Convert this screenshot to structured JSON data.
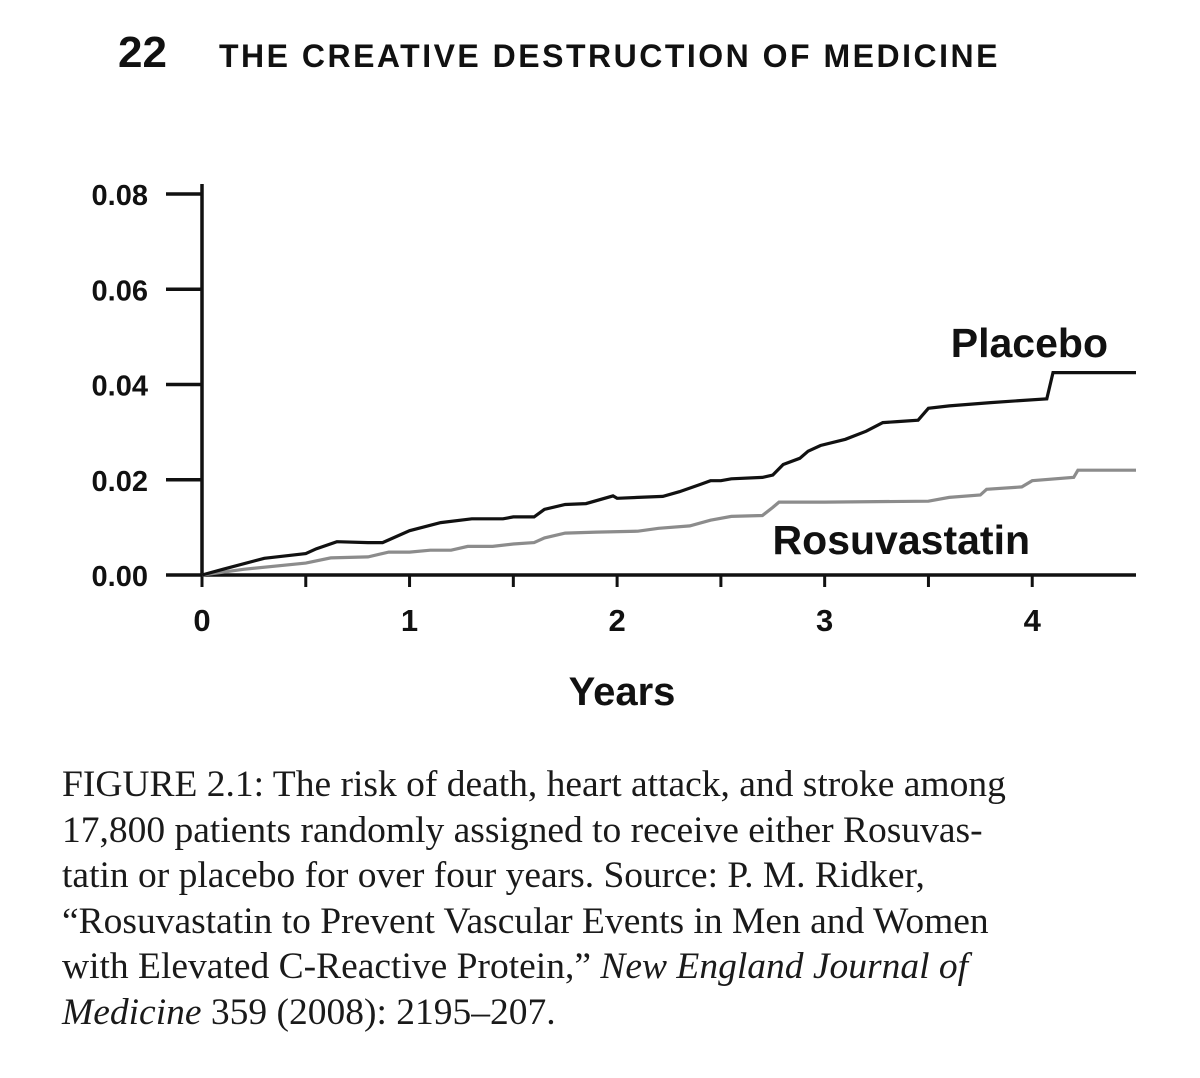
{
  "header": {
    "page_number": "22",
    "book_title": "THE CREATIVE DESTRUCTION OF MEDICINE"
  },
  "chart_data": {
    "type": "line",
    "title": "",
    "xlabel": "Years",
    "ylabel": "",
    "xlim": [
      0,
      4.5
    ],
    "ylim": [
      0,
      0.08
    ],
    "x_ticks": [
      0,
      1,
      2,
      3,
      4
    ],
    "x_tick_labels": [
      "0",
      "1",
      "2",
      "3",
      "4"
    ],
    "y_ticks": [
      0,
      0.02,
      0.04,
      0.06,
      0.08
    ],
    "y_tick_labels": [
      "0.00",
      "0.02",
      "0.04",
      "0.06",
      "0.08"
    ],
    "series": [
      {
        "name": "Placebo",
        "color": "#111111",
        "label_position": "right, above line",
        "points": [
          [
            0,
            0
          ],
          [
            0.1,
            0.0012
          ],
          [
            0.3,
            0.0035
          ],
          [
            0.5,
            0.0045
          ],
          [
            0.55,
            0.0055
          ],
          [
            0.65,
            0.007
          ],
          [
            0.8,
            0.0068
          ],
          [
            0.87,
            0.0068
          ],
          [
            1.0,
            0.0093
          ],
          [
            1.15,
            0.011
          ],
          [
            1.3,
            0.0118
          ],
          [
            1.45,
            0.0118
          ],
          [
            1.5,
            0.0122
          ],
          [
            1.6,
            0.0122
          ],
          [
            1.65,
            0.0138
          ],
          [
            1.75,
            0.0148
          ],
          [
            1.85,
            0.015
          ],
          [
            1.98,
            0.0166
          ],
          [
            2.0,
            0.0161
          ],
          [
            2.1,
            0.0163
          ],
          [
            2.22,
            0.0165
          ],
          [
            2.3,
            0.0175
          ],
          [
            2.4,
            0.019
          ],
          [
            2.45,
            0.0198
          ],
          [
            2.5,
            0.0198
          ],
          [
            2.55,
            0.0202
          ],
          [
            2.7,
            0.0205
          ],
          [
            2.75,
            0.021
          ],
          [
            2.8,
            0.0232
          ],
          [
            2.88,
            0.0245
          ],
          [
            2.92,
            0.026
          ],
          [
            2.98,
            0.0272
          ],
          [
            3.1,
            0.0285
          ],
          [
            3.2,
            0.0302
          ],
          [
            3.28,
            0.032
          ],
          [
            3.35,
            0.0322
          ],
          [
            3.45,
            0.0325
          ],
          [
            3.5,
            0.035
          ],
          [
            3.6,
            0.0355
          ],
          [
            3.8,
            0.0362
          ],
          [
            4.07,
            0.037
          ],
          [
            4.1,
            0.0425
          ],
          [
            4.5,
            0.0425
          ]
        ]
      },
      {
        "name": "Rosuvastatin",
        "color": "#8c8c8c",
        "label_position": "right, below line",
        "points": [
          [
            0,
            0
          ],
          [
            0.2,
            0.0012
          ],
          [
            0.5,
            0.0025
          ],
          [
            0.62,
            0.0036
          ],
          [
            0.8,
            0.0038
          ],
          [
            0.9,
            0.0048
          ],
          [
            1.0,
            0.0048
          ],
          [
            1.1,
            0.0052
          ],
          [
            1.2,
            0.0052
          ],
          [
            1.28,
            0.006
          ],
          [
            1.4,
            0.006
          ],
          [
            1.5,
            0.0065
          ],
          [
            1.6,
            0.0068
          ],
          [
            1.65,
            0.0078
          ],
          [
            1.75,
            0.0088
          ],
          [
            1.9,
            0.009
          ],
          [
            2.1,
            0.0092
          ],
          [
            2.2,
            0.0098
          ],
          [
            2.35,
            0.0103
          ],
          [
            2.45,
            0.0115
          ],
          [
            2.55,
            0.0123
          ],
          [
            2.7,
            0.0125
          ],
          [
            2.75,
            0.0142
          ],
          [
            2.78,
            0.0153
          ],
          [
            3.0,
            0.0153
          ],
          [
            3.5,
            0.0155
          ],
          [
            3.6,
            0.0163
          ],
          [
            3.75,
            0.0168
          ],
          [
            3.78,
            0.018
          ],
          [
            3.95,
            0.0185
          ],
          [
            4.0,
            0.0198
          ],
          [
            4.2,
            0.0205
          ],
          [
            4.22,
            0.022
          ],
          [
            4.5,
            0.022
          ]
        ]
      }
    ]
  },
  "caption": {
    "line1": "FIGURE 2.1:  The risk of death, heart attack, and stroke among",
    "line2": "17,800 patients randomly assigned to receive either Rosuvas-",
    "line3": "tatin or placebo for over four years. Source: P. M. Ridker,",
    "line4": "“Rosuvastatin to Prevent Vascular Events in Men and Women",
    "line5_start": "with Elevated C-Reactive Protein,” ",
    "line5_journal": "New England Journal of",
    "line6_journal": "Medicine",
    "line6_end": " 359 (2008): 2195–207."
  }
}
